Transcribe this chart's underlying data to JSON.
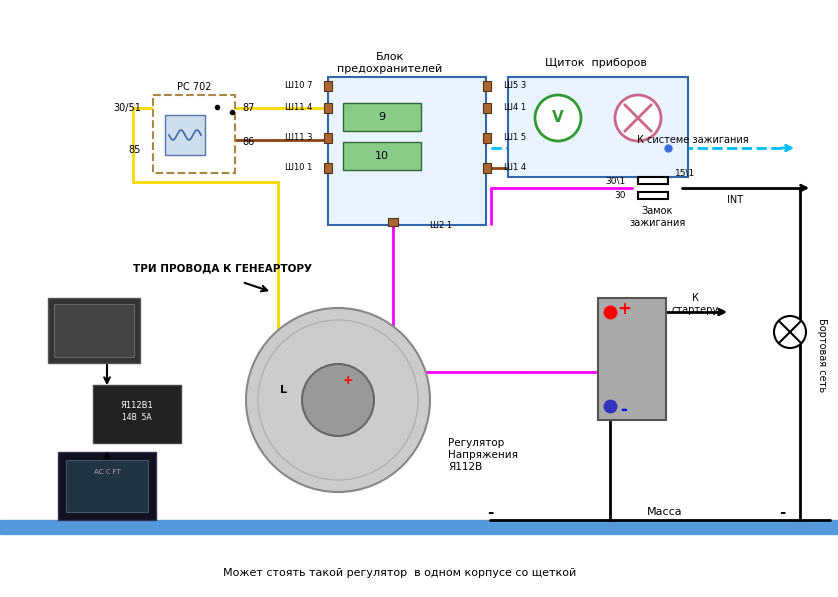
{
  "bg_color": "#ffffff",
  "bottom_text": "Может стоять такой регулятор  в одном корпусе со щеткой",
  "labels": {
    "blok": "Блок\nпредохранителей",
    "shitok": "Щиток  приборов",
    "pc702": "РС 702",
    "tri_provoda": "ТРИ ПРОВОДА К ГЕНЕАРТОРУ",
    "regulator": "Регулятор\nНапряжения\nЯ112В",
    "k_starteru": "К\nстартеру",
    "zamok": "Замок\nзажигания",
    "k_sisteme": "К системе зажигания",
    "massa": "Масса",
    "bortovaya": "Бортовая сеть",
    "int": "INT",
    "label_30_51": "30/51",
    "label_85": "85",
    "label_87": "87",
    "label_86": "86",
    "label_L": "L",
    "label_30_1": "30\\1",
    "label_15_1": "15\\1",
    "label_30": "30",
    "sh107": "Ш10 7",
    "sh114": "Ш11 4",
    "sh113": "Ш11 3",
    "sh101": "Ш10 1",
    "sh53": "Ш5 3",
    "sh41": "Ш4 1",
    "sh15": "Ш1 5",
    "sh14": "Ш1 4",
    "sh21": "Ш2 1",
    "fuse9": "9",
    "fuse10": "10",
    "plus": "+",
    "minus": "-",
    "chip_label1": "Я112В1",
    "chip_label2": "14B  5A",
    "relay_label": "AC C FT"
  },
  "colors": {
    "yellow": "#FFD700",
    "brown": "#8B4513",
    "magenta": "#FF00FF",
    "blue_line": "#4169E1",
    "cyan_line": "#00BFFF",
    "black": "#000000",
    "light_blue_box": "#ADD8E6",
    "blue_box": "#6699CC",
    "gray_box": "#888888",
    "green_circle": "#00CC00",
    "pink_cross": "#FF88AA",
    "relay_border": "#AA8844",
    "grid_bg": "#E8F4FF",
    "red": "#FF0000",
    "dark_gray": "#555555",
    "fuse_green": "#88CC88",
    "fuse_green_edge": "#336633",
    "connector_face": "#AA6633",
    "connector_edge": "#553311",
    "coil_bg": "#CCDDEE",
    "coil_edge": "#5577AA",
    "coil_line": "#4466AA",
    "box_edge": "#3366AA",
    "voltmeter_edge": "#339933",
    "lamp_edge": "#CC6688",
    "battery_face": "#AAAAAA",
    "battery_edge": "#555555",
    "battery_lines": "#666666",
    "chip_face": "#222222",
    "chip_edge": "#444444",
    "relay_face": "#111122",
    "relay_edge": "#333355",
    "relay_inner_face": "#223344",
    "relay_inner_edge": "#445566",
    "dark_comp": "#333333",
    "dark_comp_edge": "#555555",
    "blue_ground_bar": "#5599DD"
  }
}
